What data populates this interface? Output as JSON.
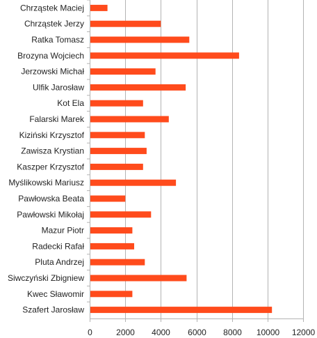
{
  "colors": {
    "bar": "#ff4b1c",
    "grid": "#b3b3b3",
    "text": "#222222",
    "background": "#ffffff"
  },
  "chart_data": {
    "type": "bar",
    "orientation": "horizontal",
    "title": "",
    "xlabel": "",
    "ylabel": "",
    "grid": true,
    "legend": "none",
    "xlim": [
      0,
      12000
    ],
    "x_ticks": [
      0,
      2000,
      4000,
      6000,
      8000,
      10000,
      12000
    ],
    "x_tick_labels": [
      "0",
      "2000",
      "4000",
      "6000",
      "8000",
      "10000",
      "12000"
    ],
    "categories": [
      "Chrząstek Maciej",
      "Chrząstek Jerzy",
      "Ratka Tomasz",
      "Brozyna Wojciech",
      "Jerzowski Michał",
      "Ulfik Jarosław",
      "Kot Ela",
      "Falarski Marek",
      "Kiziński Krzysztof",
      "Zawisza Krystian",
      "Kaszper Krzysztof",
      "Myślikowski Mariusz",
      "Pawłowska Beata",
      "Pawłowski Mikołaj",
      "Mazur Piotr",
      "Radecki Rafał",
      "Pluta Andrzej",
      "Siwczyński Zbigniew",
      "Kwec Sławomir",
      "Szafert Jarosław"
    ],
    "values": [
      1000,
      4000,
      5600,
      8400,
      3700,
      5400,
      3000,
      4450,
      3100,
      3200,
      3000,
      4850,
      2000,
      3450,
      2400,
      2500,
      3100,
      5450,
      2400,
      10250
    ]
  }
}
